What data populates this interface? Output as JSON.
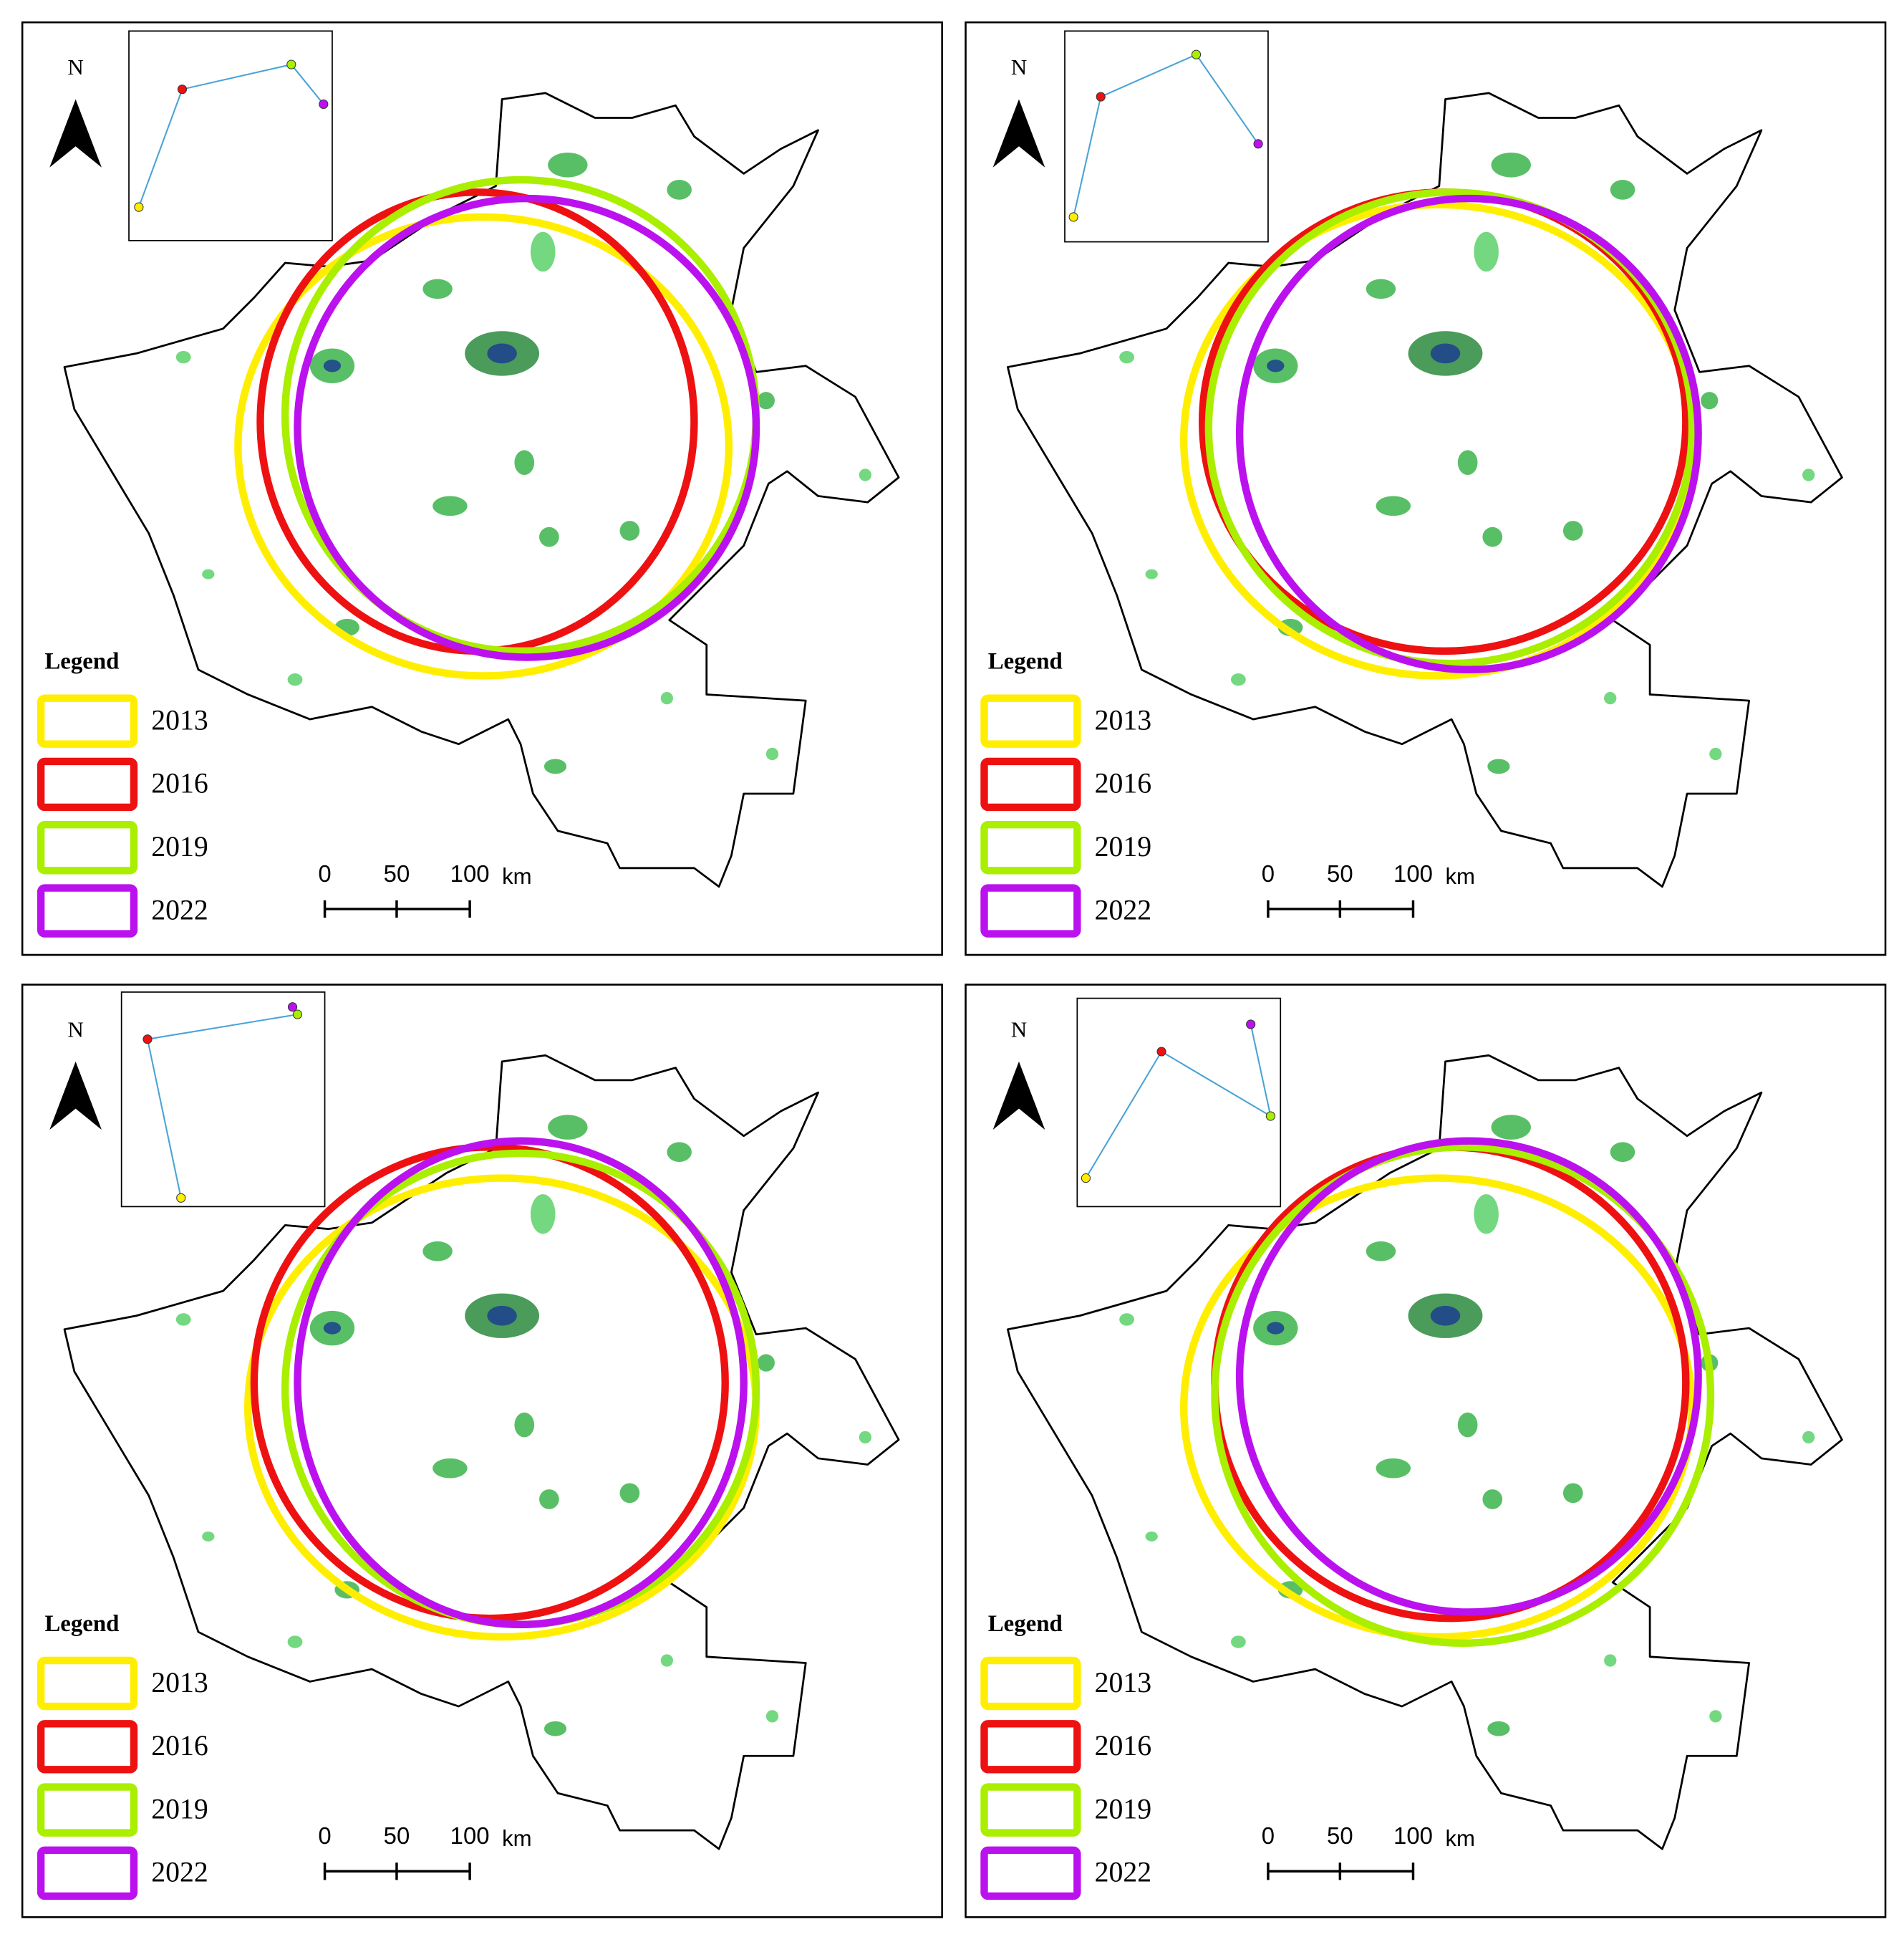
{
  "panels": [
    {
      "north": "N",
      "legend": {
        "title": "Legend",
        "items": [
          {
            "label": "2013",
            "color": "#ffee00"
          },
          {
            "label": "2016",
            "color": "#ee1111"
          },
          {
            "label": "2019",
            "color": "#aaee00"
          },
          {
            "label": "2022",
            "color": "#bb11ee"
          }
        ]
      },
      "scale": {
        "labels": [
          "0",
          "50",
          "100"
        ],
        "unit": "km"
      }
    },
    {
      "north": "N",
      "legend": {
        "title": "Legend",
        "items": [
          {
            "label": "2013",
            "color": "#ffee00"
          },
          {
            "label": "2016",
            "color": "#ee1111"
          },
          {
            "label": "2019",
            "color": "#aaee00"
          },
          {
            "label": "2022",
            "color": "#bb11ee"
          }
        ]
      },
      "scale": {
        "labels": [
          "0",
          "50",
          "100"
        ],
        "unit": "km"
      }
    },
    {
      "north": "N",
      "legend": {
        "title": "Legend",
        "items": [
          {
            "label": "2013",
            "color": "#ffee00"
          },
          {
            "label": "2016",
            "color": "#ee1111"
          },
          {
            "label": "2019",
            "color": "#aaee00"
          },
          {
            "label": "2022",
            "color": "#bb11ee"
          }
        ]
      },
      "scale": {
        "labels": [
          "0",
          "50",
          "100"
        ],
        "unit": "km"
      }
    },
    {
      "north": "N",
      "legend": {
        "title": "Legend",
        "items": [
          {
            "label": "2013",
            "color": "#ffee00"
          },
          {
            "label": "2016",
            "color": "#ee1111"
          },
          {
            "label": "2019",
            "color": "#aaee00"
          },
          {
            "label": "2022",
            "color": "#bb11ee"
          }
        ]
      },
      "scale": {
        "labels": [
          "0",
          "50",
          "100"
        ],
        "unit": "km"
      }
    }
  ]
}
